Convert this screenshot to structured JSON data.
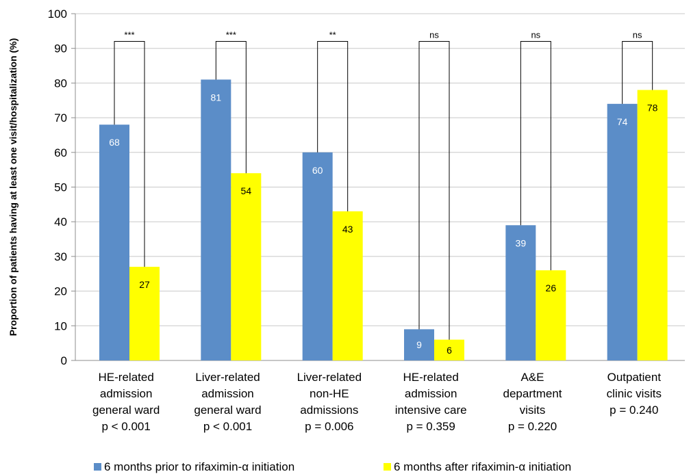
{
  "chart_data": {
    "type": "bar",
    "title": "",
    "ylabel": "Proportion of patients having at least one visit/hospitalization (%)",
    "xlabel": "",
    "ylim": [
      0,
      100
    ],
    "yticks": [
      0,
      10,
      20,
      30,
      40,
      50,
      60,
      70,
      80,
      90,
      100
    ],
    "grid": true,
    "legend_position": "bottom",
    "categories": [
      [
        "HE-related",
        "admission",
        "general ward",
        "p < 0.001"
      ],
      [
        "Liver-related",
        "admission",
        "general ward",
        "p < 0.001"
      ],
      [
        "Liver-related",
        "non-HE",
        "admissions",
        "p = 0.006"
      ],
      [
        "HE-related",
        "admission",
        "intensive care",
        "p = 0.359"
      ],
      [
        "A&E",
        "department",
        "visits",
        "p = 0.220"
      ],
      [
        "Outpatient",
        "clinic visits",
        "p = 0.240"
      ]
    ],
    "significance": [
      "***",
      "***",
      "**",
      "ns",
      "ns",
      "ns"
    ],
    "series": [
      {
        "name": "6 months prior to rifaximin-α initiation",
        "color": "#5B8DC8",
        "label_color": "#ffffff",
        "values": [
          68,
          81,
          60,
          9,
          39,
          74
        ]
      },
      {
        "name": "6 months after rifaximin-α initiation",
        "color": "#FFFF00",
        "label_color": "#000000",
        "values": [
          27,
          54,
          43,
          6,
          26,
          78
        ]
      }
    ]
  }
}
